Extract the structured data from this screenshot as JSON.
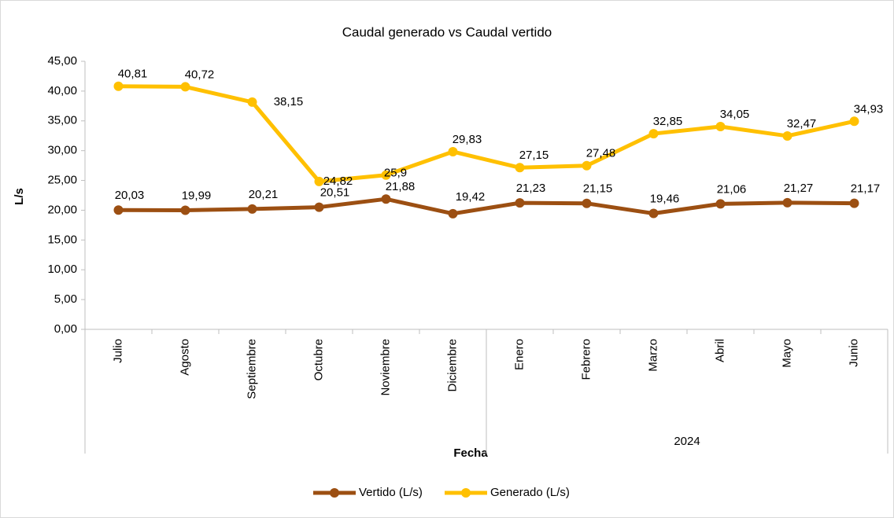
{
  "chart_data": {
    "type": "line",
    "title": "Caudal generado vs Caudal vertido",
    "x_label": "Fecha",
    "y_label": "L/s",
    "category_groups": [
      {
        "label": null,
        "categories": [
          "Julio",
          "Agosto",
          "Septiembre",
          "Octubre",
          "Noviembre",
          "Diciembre"
        ]
      },
      {
        "label": "2024",
        "categories": [
          "Enero",
          "Febrero",
          "Marzo",
          "Abril",
          "Mayo",
          "Junio"
        ]
      }
    ],
    "series": [
      {
        "name": "Vertido (L/s)",
        "color": "#9c4f12",
        "values": [
          20.03,
          19.99,
          20.21,
          20.51,
          21.88,
          19.42,
          21.23,
          21.15,
          19.46,
          21.06,
          21.27,
          21.17
        ],
        "value_labels": [
          "20,03",
          "19,99",
          "20,21",
          "20,51",
          "21,88",
          "19,42",
          "21,23",
          "21,15",
          "19,46",
          "21,06",
          "21,27",
          "21,17"
        ]
      },
      {
        "name": "Generado (L/s)",
        "color": "#ffc000",
        "values": [
          40.81,
          40.72,
          38.15,
          24.82,
          25.9,
          29.83,
          27.15,
          27.48,
          32.85,
          34.05,
          32.47,
          34.93
        ],
        "value_labels": [
          "40,81",
          "40,72",
          "38,15",
          "24,82",
          "25,9",
          "29,83",
          "27,15",
          "27,48",
          "32,85",
          "34,05",
          "32,47",
          "34,93"
        ]
      }
    ],
    "ylim": [
      0,
      45
    ],
    "yticks": [
      {
        "value": 0,
        "label": "0,00"
      },
      {
        "value": 5,
        "label": "5,00"
      },
      {
        "value": 10,
        "label": "10,00"
      },
      {
        "value": 15,
        "label": "15,00"
      },
      {
        "value": 20,
        "label": "20,00"
      },
      {
        "value": 25,
        "label": "25,00"
      },
      {
        "value": 30,
        "label": "30,00"
      },
      {
        "value": 35,
        "label": "35,00"
      },
      {
        "value": 40,
        "label": "40,00"
      },
      {
        "value": 45,
        "label": "45,00"
      }
    ],
    "grid": false,
    "legend": "bottom"
  }
}
